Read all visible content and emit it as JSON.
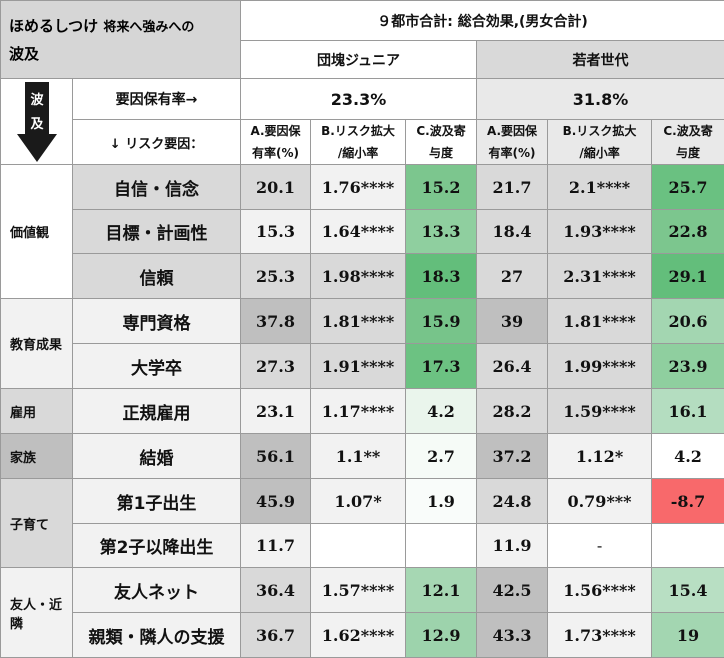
{
  "title": {
    "main": "ほめるしつけ",
    "small": "将来へ強みへの",
    "line2": "波及"
  },
  "header_total": "９都市合計: 総合効果,(男女合計)",
  "groups": {
    "a": "団塊ジュニア",
    "b": "若者世代"
  },
  "arrow_label": {
    "c1": "波",
    "c2": "及"
  },
  "retention_label": "要因保有率→",
  "retention_values": {
    "a": "23.3%",
    "b": "31.8%"
  },
  "risk_label": "↓ リスク要因：",
  "col_headers": {
    "a_l1": "A.要因保",
    "a_l2": "有率(%)",
    "b_l1": "B.リスク拡大",
    "b_l2": "/縮小率",
    "c_l1": "C.波及寄",
    "c_l2": "与度"
  },
  "categories": {
    "values": "価値観",
    "education": "教育成果",
    "employment": "雇用",
    "family": "家族",
    "childrearing": "子育て",
    "friends_l1": "友人・近",
    "friends_l2": "隣"
  },
  "rows": [
    {
      "name": "自信・信念",
      "ga": "20.1",
      "gb": "1.76****",
      "gc": "15.2",
      "ya": "21.7",
      "yb": "2.1****",
      "yc": "25.7"
    },
    {
      "name": "目標・計画性",
      "ga": "15.3",
      "gb": "1.64****",
      "gc": "13.3",
      "ya": "18.4",
      "yb": "1.93****",
      "yc": "22.8"
    },
    {
      "name": "信頼",
      "ga": "25.3",
      "gb": "1.98****",
      "gc": "18.3",
      "ya": "27",
      "yb": "2.31****",
      "yc": "29.1"
    },
    {
      "name": "専門資格",
      "ga": "37.8",
      "gb": "1.81****",
      "gc": "15.9",
      "ya": "39",
      "yb": "1.81****",
      "yc": "20.6"
    },
    {
      "name": "大学卒",
      "ga": "27.3",
      "gb": "1.91****",
      "gc": "17.3",
      "ya": "26.4",
      "yb": "1.99****",
      "yc": "23.9"
    },
    {
      "name": "正規雇用",
      "ga": "23.1",
      "gb": "1.17****",
      "gc": "4.2",
      "ya": "28.2",
      "yb": "1.59****",
      "yc": "16.1"
    },
    {
      "name": "結婚",
      "ga": "56.1",
      "gb": "1.1**",
      "gc": "2.7",
      "ya": "37.2",
      "yb": "1.12*",
      "yc": "4.2"
    },
    {
      "name": "第1子出生",
      "ga": "45.9",
      "gb": "1.07*",
      "gc": "1.9",
      "ya": "24.8",
      "yb": "0.79***",
      "yc": "-8.7"
    },
    {
      "name": "第2子以降出生",
      "ga": "11.7",
      "gb": "",
      "gc": "",
      "ya": "11.9",
      "yb": "-",
      "yc": ""
    },
    {
      "name": "友人ネット",
      "ga": "36.4",
      "gb": "1.57****",
      "gc": "12.1",
      "ya": "42.5",
      "yb": "1.56****",
      "yc": "15.4"
    },
    {
      "name": "親類・隣人の支援",
      "ga": "36.7",
      "gb": "1.62****",
      "gc": "12.9",
      "ya": "43.3",
      "yb": "1.73****",
      "yc": "19"
    }
  ],
  "colors": {
    "green_strong": "#63be7b",
    "green_mid": "#8fcf9f",
    "green_light": "#b4ddc0",
    "green_pale": "#eaf5ec",
    "red": "#f8696b",
    "header_gray": "#d6d6d6"
  }
}
